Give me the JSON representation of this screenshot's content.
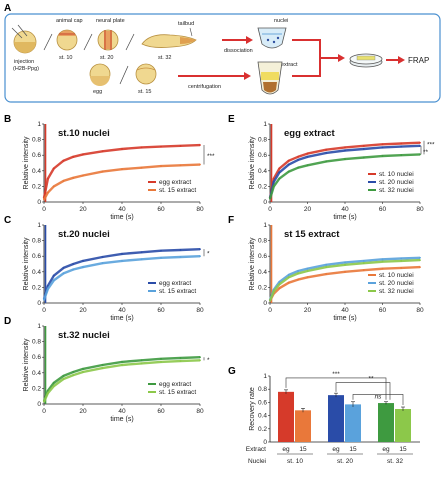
{
  "schematic": {
    "panel_label": "A",
    "injection": "injection",
    "injection_sub": "(H2B-Ppg)",
    "animal_cap": "animal cap",
    "neural_plate": "neural plate",
    "tailbud": "tailbud",
    "st10": "st. 10",
    "st20": "st. 20",
    "st32": "st. 32",
    "dissociation": "dissociation",
    "nuclei": "nuclei",
    "extract": "extract",
    "egg": "egg",
    "st15": "st. 15",
    "centrifugation": "centrifugation",
    "frap": "FRAP",
    "colors": {
      "box": "#4a90d0",
      "arrow": "#d93030",
      "embryo": "#e8c878",
      "embryo_dark": "#c89040"
    }
  },
  "chart_data": [
    {
      "panel": "B",
      "type": "line",
      "title": "st.10 nuclei",
      "xlabel": "time (s)",
      "ylabel": "Relative intensity",
      "xlim": [
        0,
        80
      ],
      "ylim": [
        0,
        1
      ],
      "xticks": [
        0,
        20,
        40,
        60,
        80
      ],
      "yticks": [
        0,
        0.2,
        0.4,
        0.6,
        0.8,
        1
      ],
      "grid": false,
      "legend_position": "bottom-right",
      "significance": "***",
      "series": [
        {
          "name": "egg extract",
          "color": "#d63a2a",
          "x": [
            0,
            2,
            5,
            10,
            15,
            20,
            30,
            40,
            50,
            60,
            70,
            80
          ],
          "values": [
            0.05,
            0.3,
            0.43,
            0.53,
            0.58,
            0.61,
            0.65,
            0.68,
            0.7,
            0.71,
            0.72,
            0.73
          ]
        },
        {
          "name": "st. 15 extract",
          "color": "#e9783a",
          "x": [
            0,
            2,
            5,
            10,
            15,
            20,
            30,
            40,
            50,
            60,
            70,
            80
          ],
          "values": [
            0.03,
            0.12,
            0.2,
            0.27,
            0.31,
            0.34,
            0.39,
            0.42,
            0.44,
            0.46,
            0.47,
            0.48
          ]
        }
      ]
    },
    {
      "panel": "C",
      "type": "line",
      "title": "st.20 nuclei",
      "xlabel": "time (s)",
      "ylabel": "Relative intensity",
      "xlim": [
        0,
        80
      ],
      "ylim": [
        0,
        1
      ],
      "xticks": [
        0,
        20,
        40,
        60,
        80
      ],
      "yticks": [
        0,
        0.2,
        0.4,
        0.6,
        0.8,
        1
      ],
      "grid": false,
      "legend_position": "bottom-right",
      "significance": "*",
      "series": [
        {
          "name": "egg extract",
          "color": "#2a4ca8",
          "x": [
            0,
            2,
            5,
            10,
            15,
            20,
            30,
            40,
            50,
            60,
            70,
            80
          ],
          "values": [
            0.05,
            0.22,
            0.35,
            0.45,
            0.5,
            0.54,
            0.59,
            0.63,
            0.65,
            0.67,
            0.68,
            0.69
          ]
        },
        {
          "name": "st. 15 extract",
          "color": "#5aa2dc",
          "x": [
            0,
            2,
            5,
            10,
            15,
            20,
            30,
            40,
            50,
            60,
            70,
            80
          ],
          "values": [
            0.04,
            0.18,
            0.29,
            0.38,
            0.43,
            0.46,
            0.51,
            0.54,
            0.56,
            0.58,
            0.59,
            0.6
          ]
        }
      ]
    },
    {
      "panel": "D",
      "type": "line",
      "title": "st.32 nuclei",
      "xlabel": "time (s)",
      "ylabel": "Relative intensity",
      "xlim": [
        0,
        80
      ],
      "ylim": [
        0,
        1
      ],
      "xticks": [
        0,
        20,
        40,
        60,
        80
      ],
      "yticks": [
        0,
        0.2,
        0.4,
        0.6,
        0.8,
        1
      ],
      "grid": false,
      "legend_position": "bottom-right",
      "significance": "*",
      "series": [
        {
          "name": "egg extract",
          "color": "#3e9a40",
          "x": [
            0,
            2,
            5,
            10,
            15,
            20,
            30,
            40,
            50,
            60,
            70,
            80
          ],
          "values": [
            0.04,
            0.17,
            0.27,
            0.36,
            0.41,
            0.45,
            0.5,
            0.54,
            0.56,
            0.58,
            0.59,
            0.6
          ]
        },
        {
          "name": "st. 15 extract",
          "color": "#8cc84a",
          "x": [
            0,
            2,
            5,
            10,
            15,
            20,
            30,
            40,
            50,
            60,
            70,
            80
          ],
          "values": [
            0.03,
            0.14,
            0.23,
            0.32,
            0.37,
            0.41,
            0.46,
            0.5,
            0.52,
            0.54,
            0.55,
            0.56
          ]
        }
      ]
    },
    {
      "panel": "E",
      "type": "line",
      "title": "egg extract",
      "xlabel": "time (s)",
      "ylabel": "Relative intensity",
      "xlim": [
        0,
        80
      ],
      "ylim": [
        0,
        1
      ],
      "xticks": [
        0,
        20,
        40,
        60,
        80
      ],
      "yticks": [
        0,
        0.2,
        0.4,
        0.6,
        0.8,
        1
      ],
      "grid": false,
      "legend_position": "bottom-right",
      "significance": [
        "***",
        "**"
      ],
      "series": [
        {
          "name": "st. 10 nuclei",
          "color": "#d63a2a",
          "x": [
            0,
            2,
            5,
            10,
            15,
            20,
            30,
            40,
            50,
            60,
            70,
            80
          ],
          "values": [
            0.05,
            0.3,
            0.43,
            0.53,
            0.58,
            0.62,
            0.67,
            0.7,
            0.72,
            0.74,
            0.75,
            0.76
          ]
        },
        {
          "name": "st. 20 nuclei",
          "color": "#2a4ca8",
          "x": [
            0,
            2,
            5,
            10,
            15,
            20,
            30,
            40,
            50,
            60,
            70,
            80
          ],
          "values": [
            0.05,
            0.26,
            0.38,
            0.48,
            0.54,
            0.58,
            0.63,
            0.66,
            0.68,
            0.7,
            0.71,
            0.72
          ]
        },
        {
          "name": "st. 32 nuclei",
          "color": "#3e9a40",
          "x": [
            0,
            2,
            5,
            10,
            15,
            20,
            30,
            40,
            50,
            60,
            70,
            80
          ],
          "values": [
            0.04,
            0.2,
            0.3,
            0.39,
            0.44,
            0.47,
            0.52,
            0.55,
            0.57,
            0.59,
            0.6,
            0.61
          ]
        }
      ]
    },
    {
      "panel": "F",
      "type": "line",
      "title": "st 15 extract",
      "xlabel": "time (s)",
      "ylabel": "Relative intensity",
      "xlim": [
        0,
        80
      ],
      "ylim": [
        0,
        1
      ],
      "xticks": [
        0,
        20,
        40,
        60,
        80
      ],
      "yticks": [
        0,
        0.2,
        0.4,
        0.6,
        0.8,
        1
      ],
      "grid": false,
      "legend_position": "bottom-right",
      "significance": "",
      "series": [
        {
          "name": "st. 10 nuclei",
          "color": "#e9783a",
          "x": [
            0,
            2,
            5,
            10,
            15,
            20,
            30,
            40,
            50,
            60,
            70,
            80
          ],
          "values": [
            0.03,
            0.12,
            0.19,
            0.26,
            0.3,
            0.33,
            0.37,
            0.4,
            0.42,
            0.44,
            0.45,
            0.46
          ]
        },
        {
          "name": "st. 20 nuclei",
          "color": "#5aa2dc",
          "x": [
            0,
            2,
            5,
            10,
            15,
            20,
            30,
            40,
            50,
            60,
            70,
            80
          ],
          "values": [
            0.04,
            0.17,
            0.27,
            0.36,
            0.41,
            0.44,
            0.49,
            0.52,
            0.54,
            0.56,
            0.57,
            0.58
          ]
        },
        {
          "name": "st. 32 nuclei",
          "color": "#8cc84a",
          "x": [
            0,
            2,
            5,
            10,
            15,
            20,
            30,
            40,
            50,
            60,
            70,
            80
          ],
          "values": [
            0.03,
            0.15,
            0.24,
            0.33,
            0.38,
            0.41,
            0.46,
            0.49,
            0.51,
            0.53,
            0.54,
            0.55
          ]
        }
      ]
    },
    {
      "panel": "G",
      "type": "bar",
      "title": "",
      "xlabel": "",
      "ylabel": "Recovery rate",
      "ylim": [
        0,
        1
      ],
      "yticks": [
        0,
        0.2,
        0.4,
        0.6,
        0.8,
        1
      ],
      "row_labels": [
        "Extract",
        "Nuclei"
      ],
      "categories": [
        "eg",
        "15",
        "eg",
        "15",
        "eg",
        "15"
      ],
      "groups": [
        "st. 10",
        "st. 20",
        "st. 32"
      ],
      "values": [
        0.76,
        0.48,
        0.71,
        0.57,
        0.59,
        0.5
      ],
      "errors": [
        0.03,
        0.03,
        0.03,
        0.04,
        0.02,
        0.03
      ],
      "colors": [
        "#d63a2a",
        "#e9783a",
        "#2a4ca8",
        "#5aa2dc",
        "#3e9a40",
        "#8cc84a"
      ],
      "significance": [
        "***",
        "**",
        "ns"
      ]
    }
  ]
}
